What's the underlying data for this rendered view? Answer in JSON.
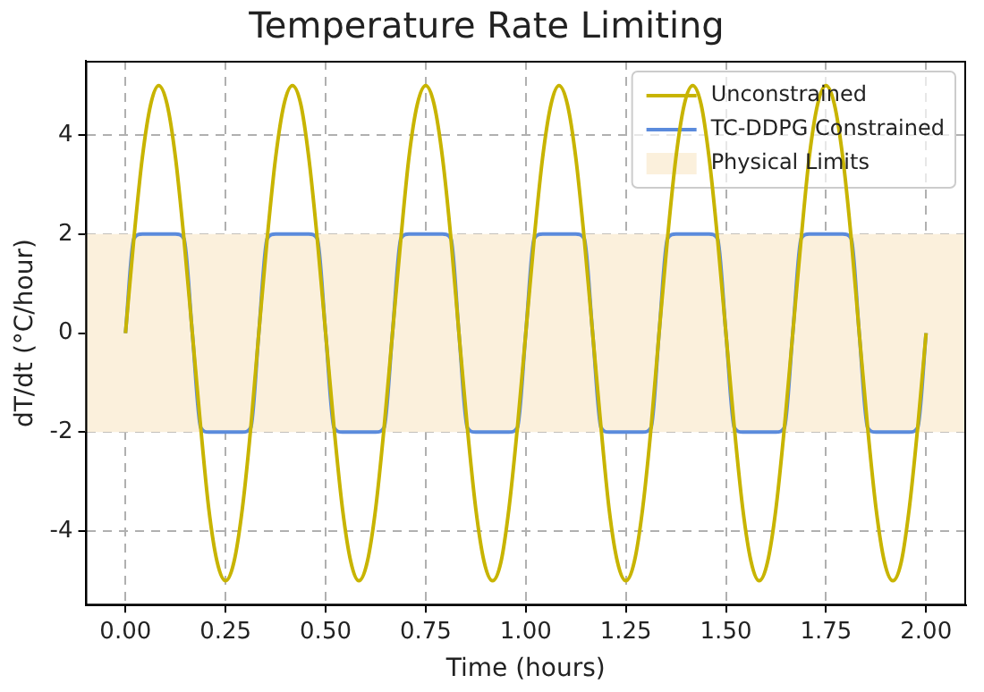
{
  "chart_data": {
    "type": "line",
    "title": "Temperature Rate Limiting",
    "xlabel": "Time (hours)",
    "ylabel": "dT/dt (°C/hour)",
    "x": [
      0,
      0.021,
      0.042,
      0.063,
      0.083,
      0.104,
      0.125,
      0.146,
      0.167,
      0.188,
      0.208,
      0.229,
      0.25,
      0.271,
      0.292,
      0.313,
      0.333,
      0.354,
      0.375,
      0.396,
      0.417,
      0.438,
      0.458,
      0.479,
      0.5,
      0.521,
      0.542,
      0.563,
      0.583,
      0.604,
      0.625,
      0.646,
      0.667,
      0.688,
      0.708,
      0.729,
      0.75,
      0.771,
      0.792,
      0.813,
      0.833,
      0.854,
      0.875,
      0.896,
      0.917,
      0.938,
      0.958,
      0.979,
      1,
      1.021,
      1.042,
      1.063,
      1.083,
      1.104,
      1.125,
      1.146,
      1.167,
      1.188,
      1.208,
      1.229,
      1.25,
      1.271,
      1.292,
      1.313,
      1.333,
      1.354,
      1.375,
      1.396,
      1.417,
      1.438,
      1.458,
      1.479,
      1.5,
      1.521,
      1.542,
      1.563,
      1.583,
      1.604,
      1.625,
      1.646,
      1.667,
      1.688,
      1.708,
      1.729,
      1.75,
      1.771,
      1.792,
      1.813,
      1.833,
      1.854,
      1.875,
      1.896,
      1.917,
      1.938,
      1.958,
      1.979,
      2
    ],
    "series": [
      {
        "name": "Unconstrained",
        "color": "#c8b400",
        "values": [
          0,
          1.91,
          3.54,
          4.62,
          5,
          4.62,
          3.54,
          1.91,
          0,
          -1.91,
          -3.54,
          -4.62,
          -5,
          -4.62,
          -3.54,
          -1.91,
          0,
          1.91,
          3.54,
          4.62,
          5,
          4.62,
          3.54,
          1.91,
          0,
          -1.91,
          -3.54,
          -4.62,
          -5,
          -4.62,
          -3.54,
          -1.91,
          0,
          1.91,
          3.54,
          4.62,
          5,
          4.62,
          3.54,
          1.91,
          0,
          -1.91,
          -3.54,
          -4.62,
          -5,
          -4.62,
          -3.54,
          -1.91,
          0,
          1.91,
          3.54,
          4.62,
          5,
          4.62,
          3.54,
          1.91,
          0,
          -1.91,
          -3.54,
          -4.62,
          -5,
          -4.62,
          -3.54,
          -1.91,
          0,
          1.91,
          3.54,
          4.62,
          5,
          4.62,
          3.54,
          1.91,
          0,
          -1.91,
          -3.54,
          -4.62,
          -5,
          -4.62,
          -3.54,
          -1.91,
          0,
          1.91,
          3.54,
          4.62,
          5,
          4.62,
          3.54,
          1.91,
          0,
          -1.91,
          -3.54,
          -4.62,
          -5,
          -4.62,
          -3.54,
          -1.91,
          0
        ]
      },
      {
        "name": "TC-DDPG Constrained",
        "color": "#5b8bdc",
        "values": [
          0,
          1.91,
          2,
          2,
          2,
          2,
          2,
          1.91,
          0,
          -1.91,
          -2,
          -2,
          -2,
          -2,
          -2,
          -1.91,
          0,
          1.91,
          2,
          2,
          2,
          2,
          2,
          1.91,
          0,
          -1.91,
          -2,
          -2,
          -2,
          -2,
          -2,
          -1.91,
          0,
          1.91,
          2,
          2,
          2,
          2,
          2,
          1.91,
          0,
          -1.91,
          -2,
          -2,
          -2,
          -2,
          -2,
          -1.91,
          0,
          1.91,
          2,
          2,
          2,
          2,
          2,
          1.91,
          0,
          -1.91,
          -2,
          -2,
          -2,
          -2,
          -2,
          -1.91,
          0,
          1.91,
          2,
          2,
          2,
          2,
          2,
          1.91,
          0,
          -1.91,
          -2,
          -2,
          -2,
          -2,
          -2,
          -1.91,
          0,
          1.91,
          2,
          2,
          2,
          2,
          2,
          1.91,
          0,
          -1.91,
          -2,
          -2,
          -2,
          -2,
          -2,
          -1.91,
          0
        ]
      }
    ],
    "bands": [
      {
        "axis": "y",
        "from": -2,
        "to": 2,
        "label": "Physical Limits",
        "color": "#fbf0dc"
      }
    ],
    "xlim": [
      -0.1,
      2.1
    ],
    "xticks": [
      {
        "value": 0,
        "label": "0.00"
      },
      {
        "value": 0.25,
        "label": "0.25"
      },
      {
        "value": 0.5,
        "label": "0.50"
      },
      {
        "value": 0.75,
        "label": "0.75"
      },
      {
        "value": 1,
        "label": "1.00"
      },
      {
        "value": 1.25,
        "label": "1.25"
      },
      {
        "value": 1.5,
        "label": "1.50"
      },
      {
        "value": 1.75,
        "label": "1.75"
      },
      {
        "value": 2,
        "label": "2.00"
      }
    ],
    "ylim": [
      -5.5,
      5.5
    ],
    "yticks": [
      -4,
      -2,
      0,
      2,
      4
    ],
    "grid": true,
    "legend": "top right",
    "line_style": "solid",
    "marker": "none"
  }
}
